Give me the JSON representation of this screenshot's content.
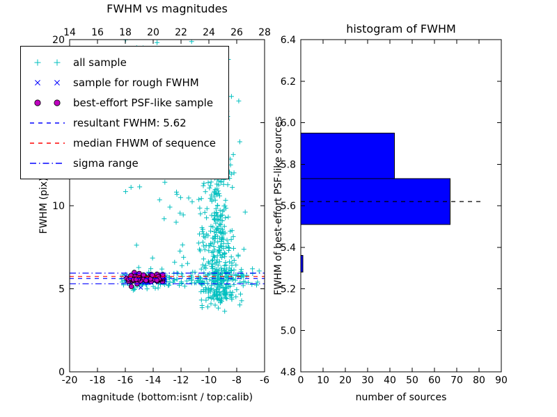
{
  "figure": {
    "background": "#ffffff"
  },
  "colors": {
    "all_sample": "#00bfbf",
    "rough_sample": "#0000ff",
    "psf_fill": "#bf00bf",
    "psf_edge": "#000000",
    "resultant_line": "#0000ff",
    "median_line": "#ff0000",
    "sigma_line": "#0000ff",
    "hist_fill": "#0000ff",
    "hist_edge": "#000000",
    "axis": "#000000"
  },
  "legend": {
    "items": [
      {
        "label": "all sample",
        "marker": "plus",
        "color": "#00bfbf"
      },
      {
        "label": "sample for rough FWHM",
        "marker": "x",
        "color": "#0000ff"
      },
      {
        "label": "best-effort PSF-like sample",
        "marker": "circle",
        "color": "#bf00bf"
      },
      {
        "label": "resultant FWHM: 5.62",
        "marker": "dashed-line",
        "color": "#0000ff"
      },
      {
        "label": "median FHWM of sequence",
        "marker": "dashed-line",
        "color": "#ff0000"
      },
      {
        "label": "sigma range",
        "marker": "dashdot-line",
        "color": "#0000ff"
      }
    ]
  },
  "chart_data": [
    {
      "id": "fwhm-vs-magnitudes",
      "type": "scatter",
      "title": "FWHM vs magnitudes",
      "xlabel": "magnitude (bottom:isnt / top:calib)",
      "ylabel": "FWHM (pix)",
      "xlim": [
        -20,
        -6
      ],
      "ylim": [
        0,
        20
      ],
      "xticks_bottom": [
        -20,
        -18,
        -16,
        -14,
        -12,
        -10,
        -8,
        -6
      ],
      "xticklabels_bottom": [
        "-20",
        "-18",
        "-16",
        "-14",
        "-12",
        "-10",
        "-8",
        "-6"
      ],
      "xticks_top": [
        14,
        16,
        18,
        20,
        22,
        24,
        26,
        28
      ],
      "xticklabels_top": [
        "14",
        "16",
        "18",
        "20",
        "22",
        "24",
        "26",
        "28"
      ],
      "yticks": [
        0,
        5,
        10,
        15,
        20
      ],
      "yticklabels": [
        "0",
        "5",
        "10",
        "15",
        "20"
      ],
      "grid": false,
      "legend_position": "upper-left",
      "series": [
        {
          "name": "all sample",
          "marker": "plus",
          "color": "#00bfbf",
          "clusters": [
            {
              "n": 160,
              "x": {
                "dist": "uniform",
                "a": -16.3,
                "b": -6.3
              },
              "y": {
                "dist": "gauss",
                "mean": 5.55,
                "sd": 0.28
              }
            },
            {
              "n": 320,
              "x": {
                "dist": "gauss",
                "mean": -9.4,
                "sd": 0.7
              },
              "y": {
                "dist": "halfgauss",
                "base": 4.3,
                "scale": 4.3
              }
            },
            {
              "n": 60,
              "x": {
                "dist": "gauss",
                "mean": -9.4,
                "sd": 0.55
              },
              "y": {
                "dist": "uniform",
                "a": 8.0,
                "b": 20.0
              }
            },
            {
              "n": 70,
              "x": {
                "dist": "uniform",
                "a": -16.0,
                "b": -8.3
              },
              "y": {
                "dist": "uniform",
                "a": 6.0,
                "b": 20.0
              }
            },
            {
              "n": 22,
              "x": {
                "dist": "gauss",
                "mean": -12.1,
                "sd": 0.25
              },
              "y": {
                "dist": "uniform",
                "a": 6.0,
                "b": 20.0
              }
            },
            {
              "n": 30,
              "x": {
                "dist": "uniform",
                "a": -10.6,
                "b": -7.6
              },
              "y": {
                "dist": "uniform",
                "a": 3.6,
                "b": 5.1
              }
            },
            {
              "n": 20,
              "x": {
                "dist": "uniform",
                "a": -16.3,
                "b": -13.0
              },
              "y": {
                "dist": "gauss",
                "mean": 5.5,
                "sd": 0.45
              }
            }
          ]
        },
        {
          "name": "sample for rough FWHM",
          "marker": "x",
          "color": "#0000ff",
          "clusters": [
            {
              "n": 85,
              "x": {
                "dist": "uniform",
                "a": -16.0,
                "b": -13.1
              },
              "y": {
                "dist": "gauss",
                "mean": 5.6,
                "sd": 0.14
              }
            }
          ]
        },
        {
          "name": "best-effort PSF-like sample",
          "marker": "circle",
          "color": "#bf00bf",
          "edge": "#000000",
          "clusters": [
            {
              "n": 80,
              "x": {
                "dist": "uniform",
                "a": -15.9,
                "b": -13.2
              },
              "y": {
                "dist": "gauss",
                "mean": 5.62,
                "sd": 0.13
              }
            }
          ]
        }
      ],
      "lines": [
        {
          "name": "resultant FWHM",
          "y": 5.62,
          "dash": "dashed",
          "color": "#0000ff"
        },
        {
          "name": "median FHWM of sequence",
          "y": 5.74,
          "dash": "dashed",
          "color": "#ff0000"
        },
        {
          "name": "sigma range upper",
          "y": 5.94,
          "dash": "dashdot",
          "color": "#0000ff"
        },
        {
          "name": "sigma range lower",
          "y": 5.3,
          "dash": "dashdot",
          "color": "#0000ff"
        }
      ]
    },
    {
      "id": "histogram-of-fwhm",
      "type": "bar",
      "orientation": "horizontal",
      "title": "histogram of FWHM",
      "xlabel": "number of sources",
      "ylabel": "FWHM of best-effort PSF-like sources",
      "xlim": [
        0,
        90
      ],
      "ylim": [
        4.8,
        6.4
      ],
      "xticks": [
        0,
        10,
        20,
        30,
        40,
        50,
        60,
        70,
        80,
        90
      ],
      "xticklabels": [
        "0",
        "10",
        "20",
        "30",
        "40",
        "50",
        "60",
        "70",
        "80",
        "90"
      ],
      "yticks": [
        4.8,
        5.0,
        5.2,
        5.4,
        5.6,
        5.8,
        6.0,
        6.2,
        6.4
      ],
      "yticklabels": [
        "4.8",
        "5.0",
        "5.2",
        "5.4",
        "5.6",
        "5.8",
        "6.0",
        "6.2",
        "6.4"
      ],
      "grid": false,
      "bars": [
        {
          "y0": 5.28,
          "y1": 5.36,
          "count": 1
        },
        {
          "y0": 5.51,
          "y1": 5.73,
          "count": 67
        },
        {
          "y0": 5.73,
          "y1": 5.95,
          "count": 42
        }
      ],
      "bar_fill": "#0000ff",
      "bar_edge": "#000000",
      "marker_line": {
        "y": 5.62,
        "x0": 0,
        "x1": 81,
        "dash": "dashed",
        "color": "#000000"
      }
    }
  ]
}
